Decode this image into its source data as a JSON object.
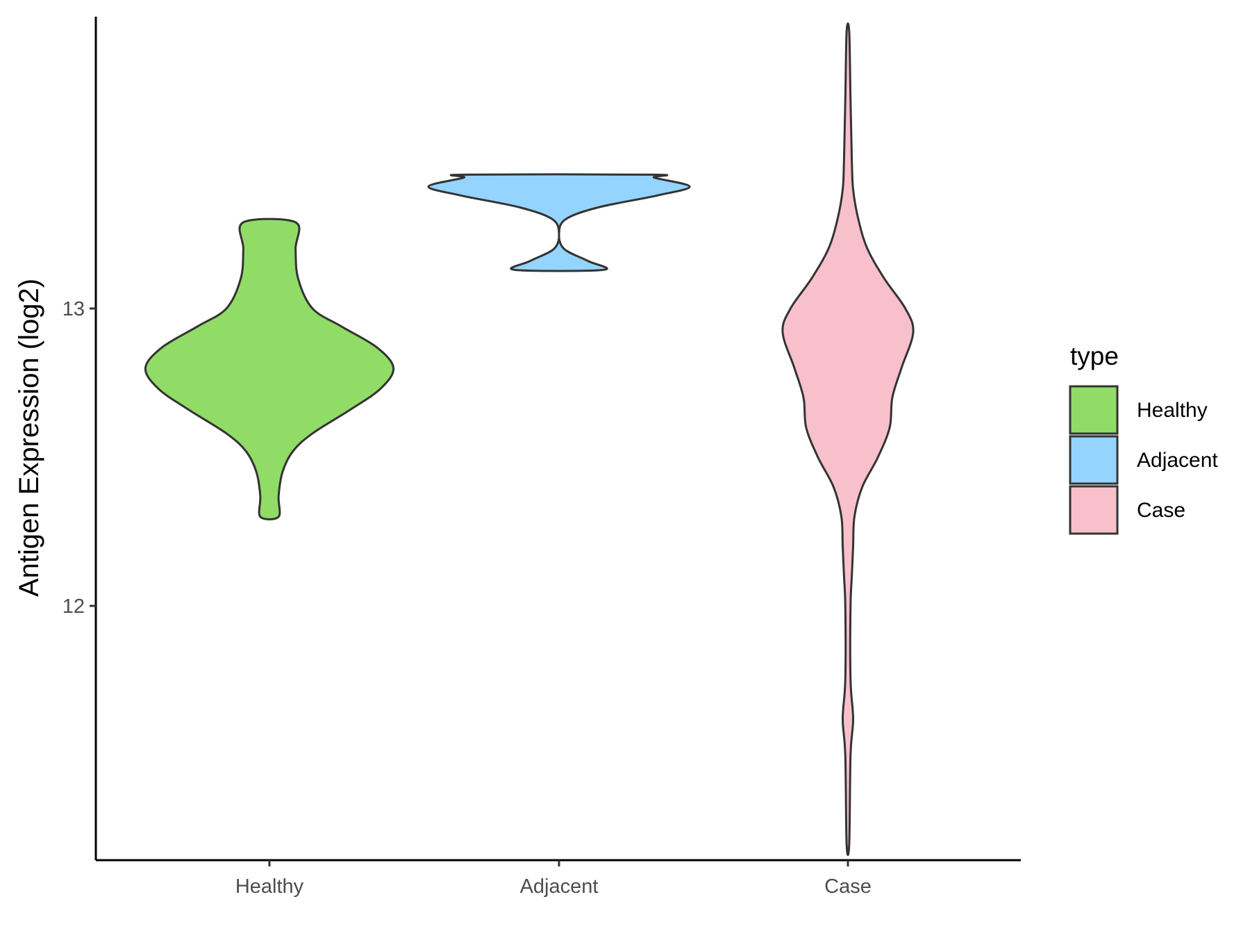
{
  "chart_data": {
    "type": "violin",
    "ylabel": "Antigen Expression (log2)",
    "xlabel": "",
    "categories": [
      "Healthy",
      "Adjacent",
      "Case"
    ],
    "yticks": [
      12,
      13
    ],
    "ylim": [
      11.2,
      14.05
    ],
    "grid": false,
    "legend": {
      "title": "type",
      "placement": "right",
      "entries": [
        "Healthy",
        "Adjacent",
        "Case"
      ]
    },
    "series": [
      {
        "name": "Healthy",
        "color": "#90dc66",
        "min": 12.3,
        "max": 13.29,
        "profile": [
          [
            12.3,
            0.07
          ],
          [
            12.37,
            0.07
          ],
          [
            12.45,
            0.1
          ],
          [
            12.52,
            0.18
          ],
          [
            12.58,
            0.33
          ],
          [
            12.66,
            0.62
          ],
          [
            12.73,
            0.85
          ],
          [
            12.8,
            0.95
          ],
          [
            12.87,
            0.82
          ],
          [
            12.94,
            0.55
          ],
          [
            13.0,
            0.33
          ],
          [
            13.1,
            0.22
          ],
          [
            13.2,
            0.2
          ],
          [
            13.29,
            0.2
          ]
        ]
      },
      {
        "name": "Adjacent",
        "color": "#94d4ff",
        "min": 13.13,
        "max": 13.45,
        "profile": [
          [
            13.13,
            0.34
          ],
          [
            13.16,
            0.22
          ],
          [
            13.2,
            0.04
          ],
          [
            13.25,
            0.0
          ],
          [
            13.3,
            0.05
          ],
          [
            13.34,
            0.3
          ],
          [
            13.38,
            0.75
          ],
          [
            13.41,
            1.0
          ],
          [
            13.44,
            0.73
          ],
          [
            13.45,
            0.73
          ]
        ]
      },
      {
        "name": "Case",
        "color": "#f7c0cb",
        "min": 11.2,
        "max": 13.93,
        "profile": [
          [
            11.2,
            0.01
          ],
          [
            11.5,
            0.02
          ],
          [
            11.62,
            0.04
          ],
          [
            11.75,
            0.02
          ],
          [
            12.0,
            0.02
          ],
          [
            12.1,
            0.03
          ],
          [
            12.2,
            0.04
          ],
          [
            12.3,
            0.05
          ],
          [
            12.4,
            0.11
          ],
          [
            12.5,
            0.23
          ],
          [
            12.6,
            0.32
          ],
          [
            12.7,
            0.34
          ],
          [
            12.8,
            0.41
          ],
          [
            12.92,
            0.5
          ],
          [
            13.0,
            0.44
          ],
          [
            13.1,
            0.28
          ],
          [
            13.2,
            0.15
          ],
          [
            13.3,
            0.08
          ],
          [
            13.4,
            0.04
          ],
          [
            13.5,
            0.03
          ],
          [
            13.7,
            0.02
          ],
          [
            13.93,
            0.01
          ]
        ]
      }
    ]
  }
}
